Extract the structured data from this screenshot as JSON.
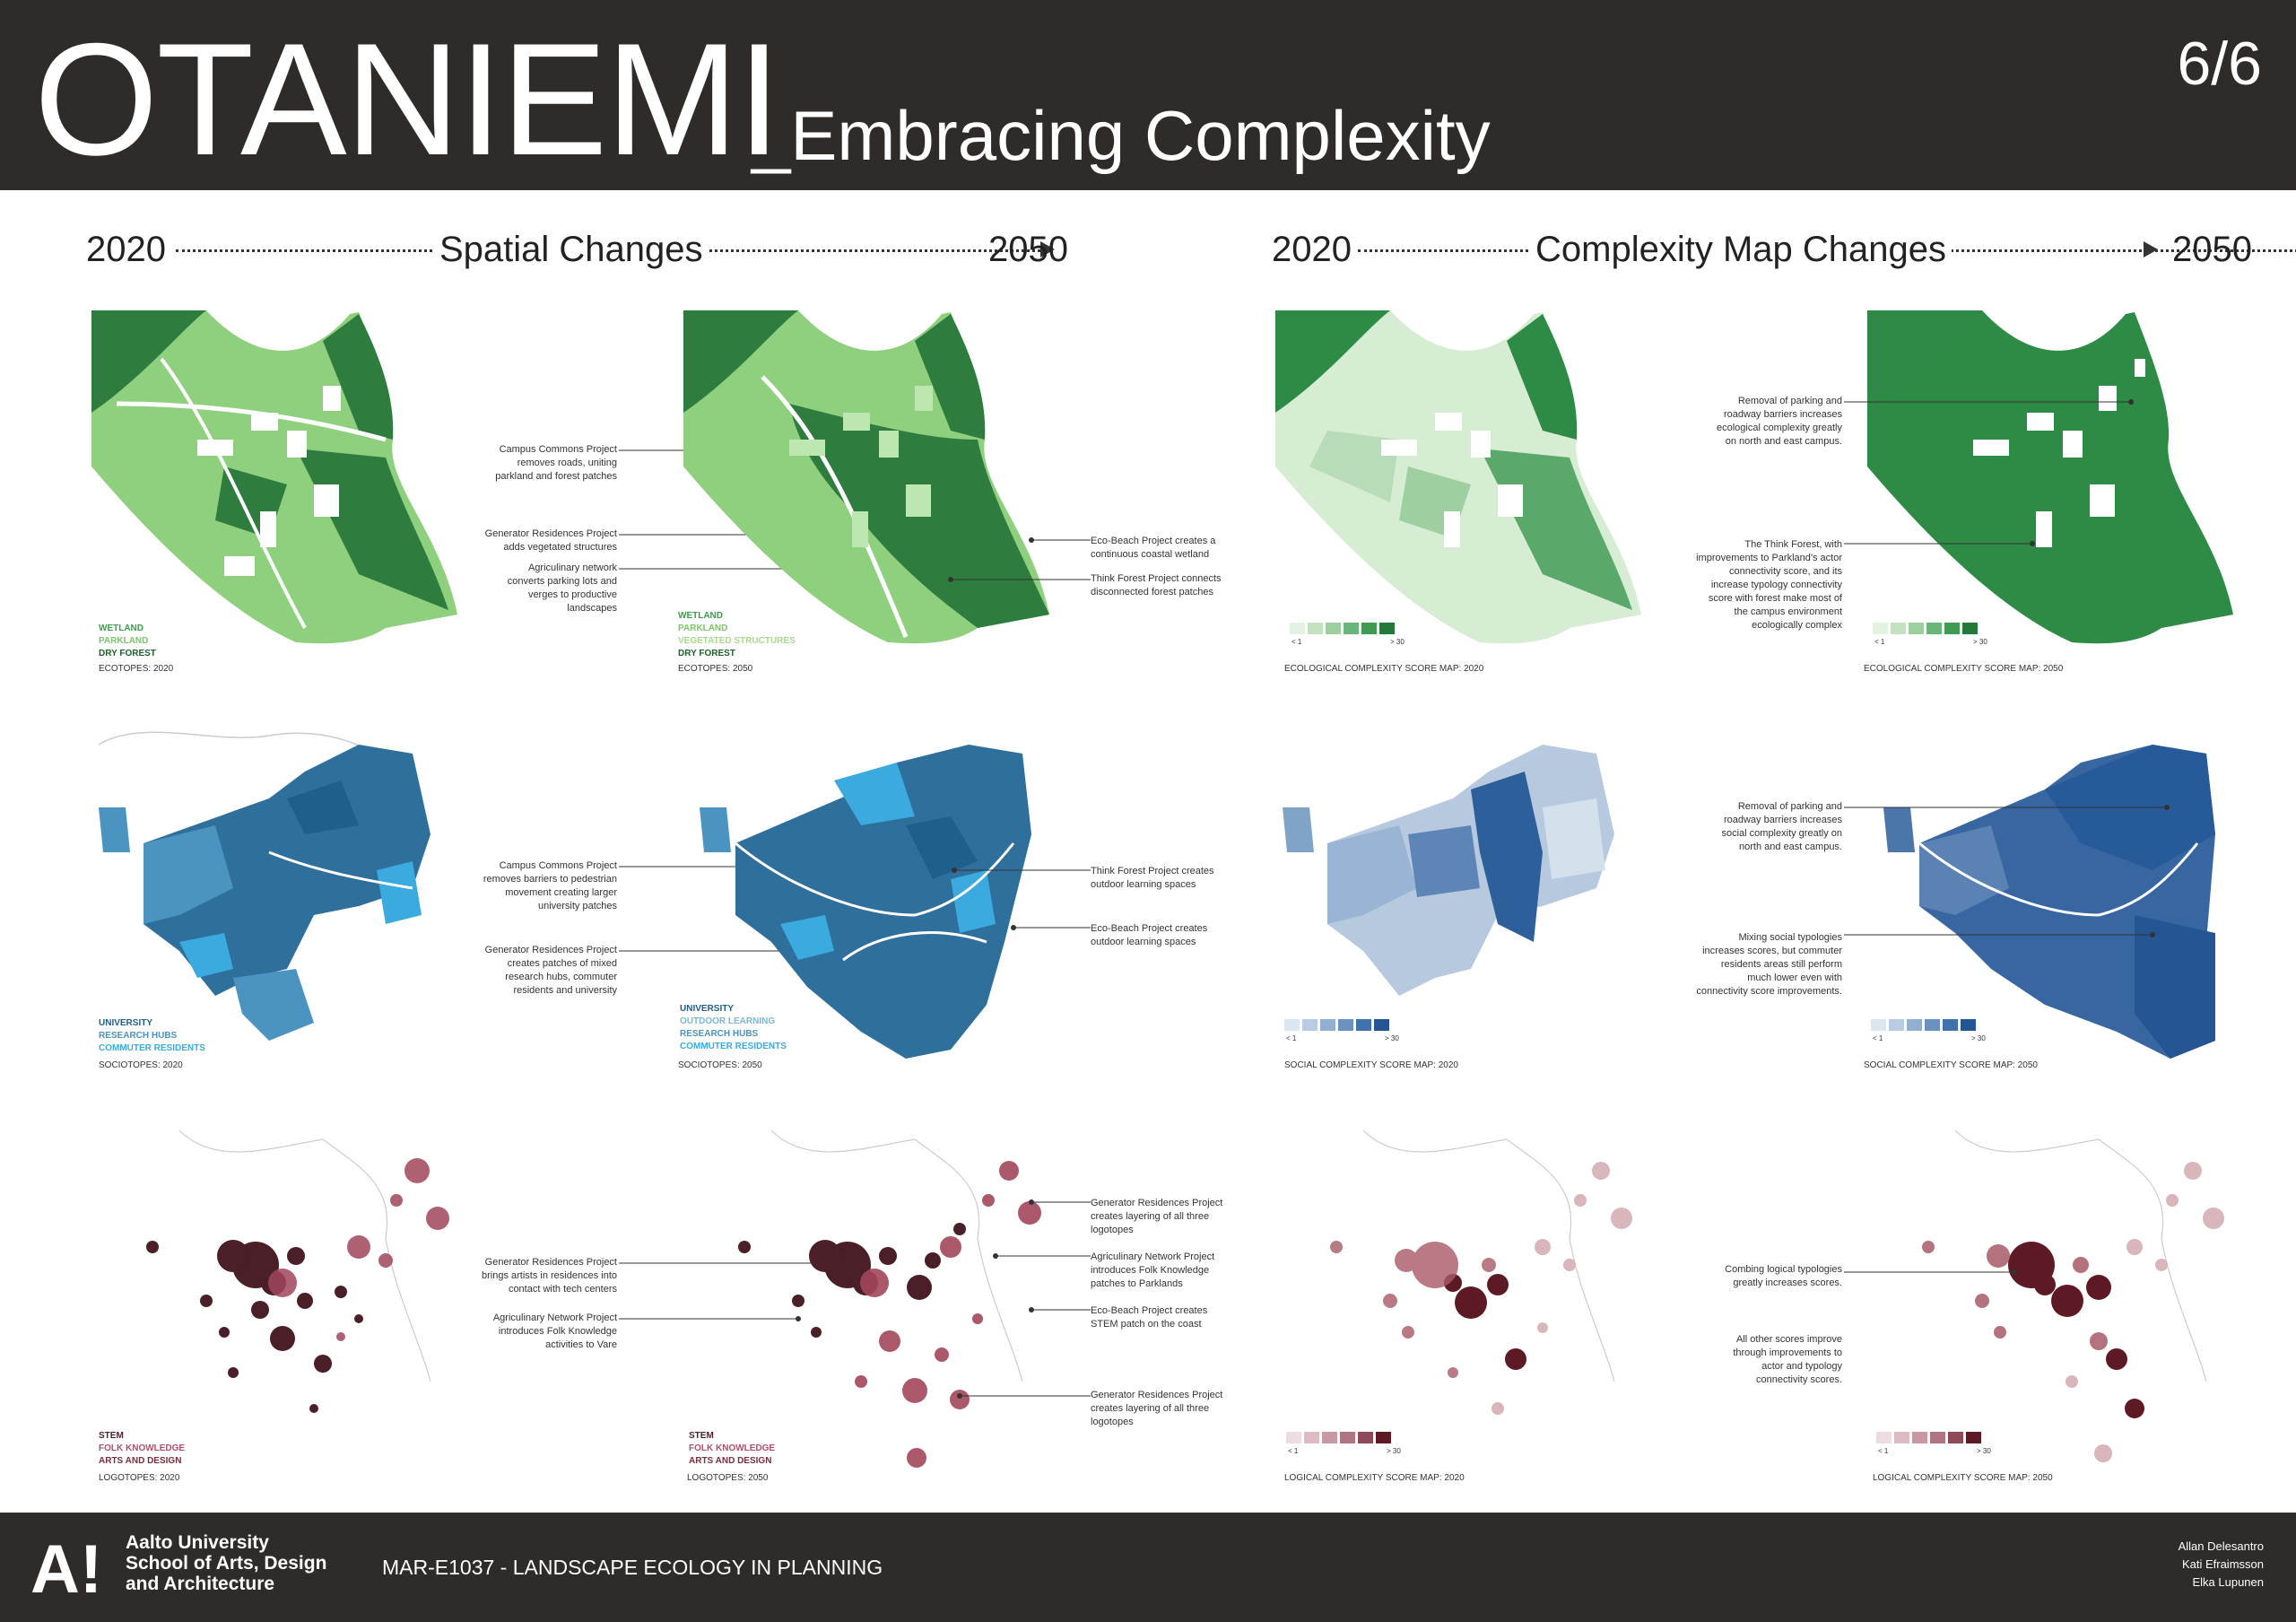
{
  "header": {
    "title_main": "OTANIEMI",
    "title_sub": "_Embracing Complexity",
    "page": "6/6"
  },
  "sections": {
    "left": {
      "start": "2020",
      "label": "Spatial Changes",
      "end": "2050"
    },
    "right": {
      "start": "2020",
      "label": "Complexity Map Changes",
      "end": "2050"
    }
  },
  "colors": {
    "eco_dark": "#2e7d3e",
    "eco_light": "#8fd07f",
    "social_dark": "#1f5f8b",
    "social_light": "#3aaadf",
    "logic_dark": "#4a1f28",
    "logic_light": "#a2465c"
  },
  "maps": {
    "eco2020": {
      "caption": "ECOTOPES: 2020",
      "legend": [
        "WETLAND",
        "PARKLAND",
        "DRY FOREST"
      ]
    },
    "eco2050": {
      "caption": "ECOTOPES: 2050",
      "legend": [
        "WETLAND",
        "PARKLAND",
        "VEGETATED STRUCTURES",
        "DRY FOREST"
      ]
    },
    "ecoc2020": {
      "caption": "ECOLOGICAL COMPLEXITY SCORE MAP: 2020"
    },
    "ecoc2050": {
      "caption": "ECOLOGICAL COMPLEXITY SCORE MAP: 2050"
    },
    "soc2020": {
      "caption": "SOCIOTOPES: 2020",
      "legend": [
        "UNIVERSITY",
        "RESEARCH HUBS",
        "COMMUTER RESIDENTS"
      ]
    },
    "soc2050": {
      "caption": "SOCIOTOPES: 2050",
      "legend": [
        "UNIVERSITY",
        "OUTDOOR LEARNING",
        "RESEARCH HUBS",
        "COMMUTER RESIDENTS"
      ]
    },
    "socc2020": {
      "caption": "SOCIAL COMPLEXITY SCORE MAP: 2020"
    },
    "socc2050": {
      "caption": "SOCIAL COMPLEXITY SCORE MAP: 2050"
    },
    "log2020": {
      "caption": "LOGOTOPES: 2020",
      "legend": [
        "STEM",
        "FOLK KNOWLEDGE",
        "ARTS AND DESIGN"
      ]
    },
    "log2050": {
      "caption": "LOGOTOPES: 2050",
      "legend": [
        "STEM",
        "FOLK KNOWLEDGE",
        "ARTS AND DESIGN"
      ]
    },
    "logc2020": {
      "caption": "LOGICAL COMPLEXITY SCORE MAP: 2020"
    },
    "logc2050": {
      "caption": "LOGICAL COMPLEXITY SCORE MAP: 2050"
    }
  },
  "scale": {
    "lo": "< 1",
    "hi": "> 30"
  },
  "annotations": {
    "eco_a1": "Campus Commons Project removes roads, uniting parkland and forest patches",
    "eco_a2": "Generator Residences Project adds vegetated structures",
    "eco_a3": "Agriculinary network converts parking lots and verges to productive landscapes",
    "eco_a4": "Eco-Beach Project creates a continuous coastal wetland",
    "eco_a5": "Think Forest Project connects disconnected forest patches",
    "ecoc_a1": "Removal of parking and roadway barriers increases ecological complexity greatly on north and east campus.",
    "ecoc_a2": "The Think Forest, with improvements to Parkland's actor connectivity score, and its increase typology connectivity score with forest make most of the campus environment ecologically complex",
    "soc_a1": "Campus Commons Project removes barriers to pedestrian movement creating larger university patches",
    "soc_a2": "Generator Residences Project creates patches of mixed research hubs, commuter residents and university",
    "soc_a3": "Think Forest Project creates outdoor learning spaces",
    "soc_a4": "Eco-Beach Project creates outdoor learning spaces",
    "socc_a1": "Removal of parking and roadway barriers increases social complexity greatly on north and east campus.",
    "socc_a2": "Mixing social typologies increases scores, but commuter residents areas still perform much lower even with connectivity score improvements.",
    "log_a1": "Generator Residences Project brings artists in residences into contact with tech centers",
    "log_a2": "Agriculinary Network Project introduces Folk Knowledge activities to Vare",
    "log_a3": "Generator Residences Project creates layering of all three logotopes",
    "log_a4": "Agriculinary Network Project introduces Folk Knowledge patches to Parklands",
    "log_a5": "Eco-Beach Project creates STEM patch on the coast",
    "log_a6": "Generator Residences Project creates layering of all three logotopes",
    "logc_a1": "Combing logical typologies greatly increases scores.",
    "logc_a2": "All other scores improve through improvements to actor and typology connectivity scores."
  },
  "footer": {
    "logo": "A!",
    "uni1": "Aalto University",
    "uni2": "School of Arts, Design",
    "uni3": "and Architecture",
    "course": "MAR-E1037 - LANDSCAPE ECOLOGY IN PLANNING",
    "author1": "Allan Delesantro",
    "author2": "Kati Efraimsson",
    "author3": "Elka Lupunen"
  }
}
